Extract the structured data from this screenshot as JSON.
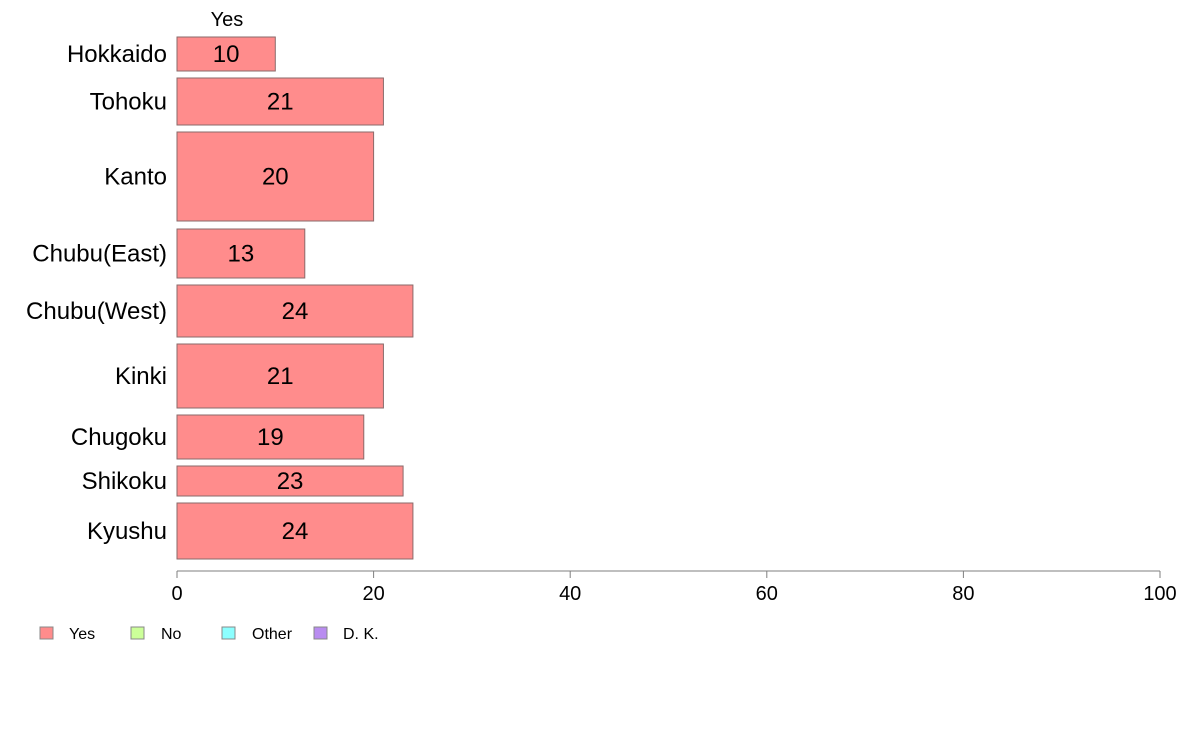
{
  "chart_data": {
    "type": "bar",
    "orientation": "horizontal",
    "stacked": true,
    "top_label": "Yes",
    "categories": [
      "Hokkaido",
      "Tohoku",
      "Kanto",
      "Chubu(East)",
      "Chubu(West)",
      "Kinki",
      "Chugoku",
      "Shikoku",
      "Kyushu"
    ],
    "series": [
      {
        "name": "Yes",
        "color": "#ff8c8c",
        "values": [
          10,
          21,
          20,
          13,
          24,
          21,
          19,
          23,
          24
        ]
      },
      {
        "name": "No",
        "color": "#ccff99",
        "values": [
          0,
          0,
          0,
          0,
          0,
          0,
          0,
          0,
          0
        ]
      },
      {
        "name": "Other",
        "color": "#8cffff",
        "values": [
          0,
          0,
          0,
          0,
          0,
          0,
          0,
          0,
          0
        ]
      },
      {
        "name": "D. K.",
        "color": "#b98cf0",
        "values": [
          0,
          0,
          0,
          0,
          0,
          0,
          0,
          0,
          0
        ]
      }
    ],
    "xlim": [
      0,
      100
    ],
    "x_ticks": [
      0,
      20,
      40,
      60,
      80,
      100
    ],
    "grid": false,
    "legend_position": "bottom-left"
  }
}
